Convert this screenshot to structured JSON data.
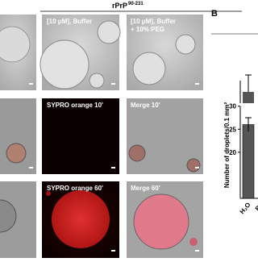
{
  "header": {
    "title": "rPrP",
    "superscript": "90-231",
    "panel_label": "B"
  },
  "panels": {
    "buffer": "[10 μM], Buffer",
    "peg_line1": "[10 μM], Buffer",
    "peg_line2": "+ 10% PEG",
    "sypro10": "SYPRO orange 10'",
    "merge10": "Merge 10'",
    "sypro60": "SYPRO orange 60'",
    "merge60": "Merge 60'"
  },
  "chart_data": {
    "type": "bar",
    "y_label": "Number of droplets/0.1 mm²",
    "categories": [
      "H₂O",
      "Bu"
    ],
    "values": [
      26,
      null
    ],
    "errors": [
      1.5,
      null
    ],
    "color": "#555555",
    "ylim": [
      10,
      31
    ],
    "yticks": [
      20,
      25,
      30
    ]
  }
}
